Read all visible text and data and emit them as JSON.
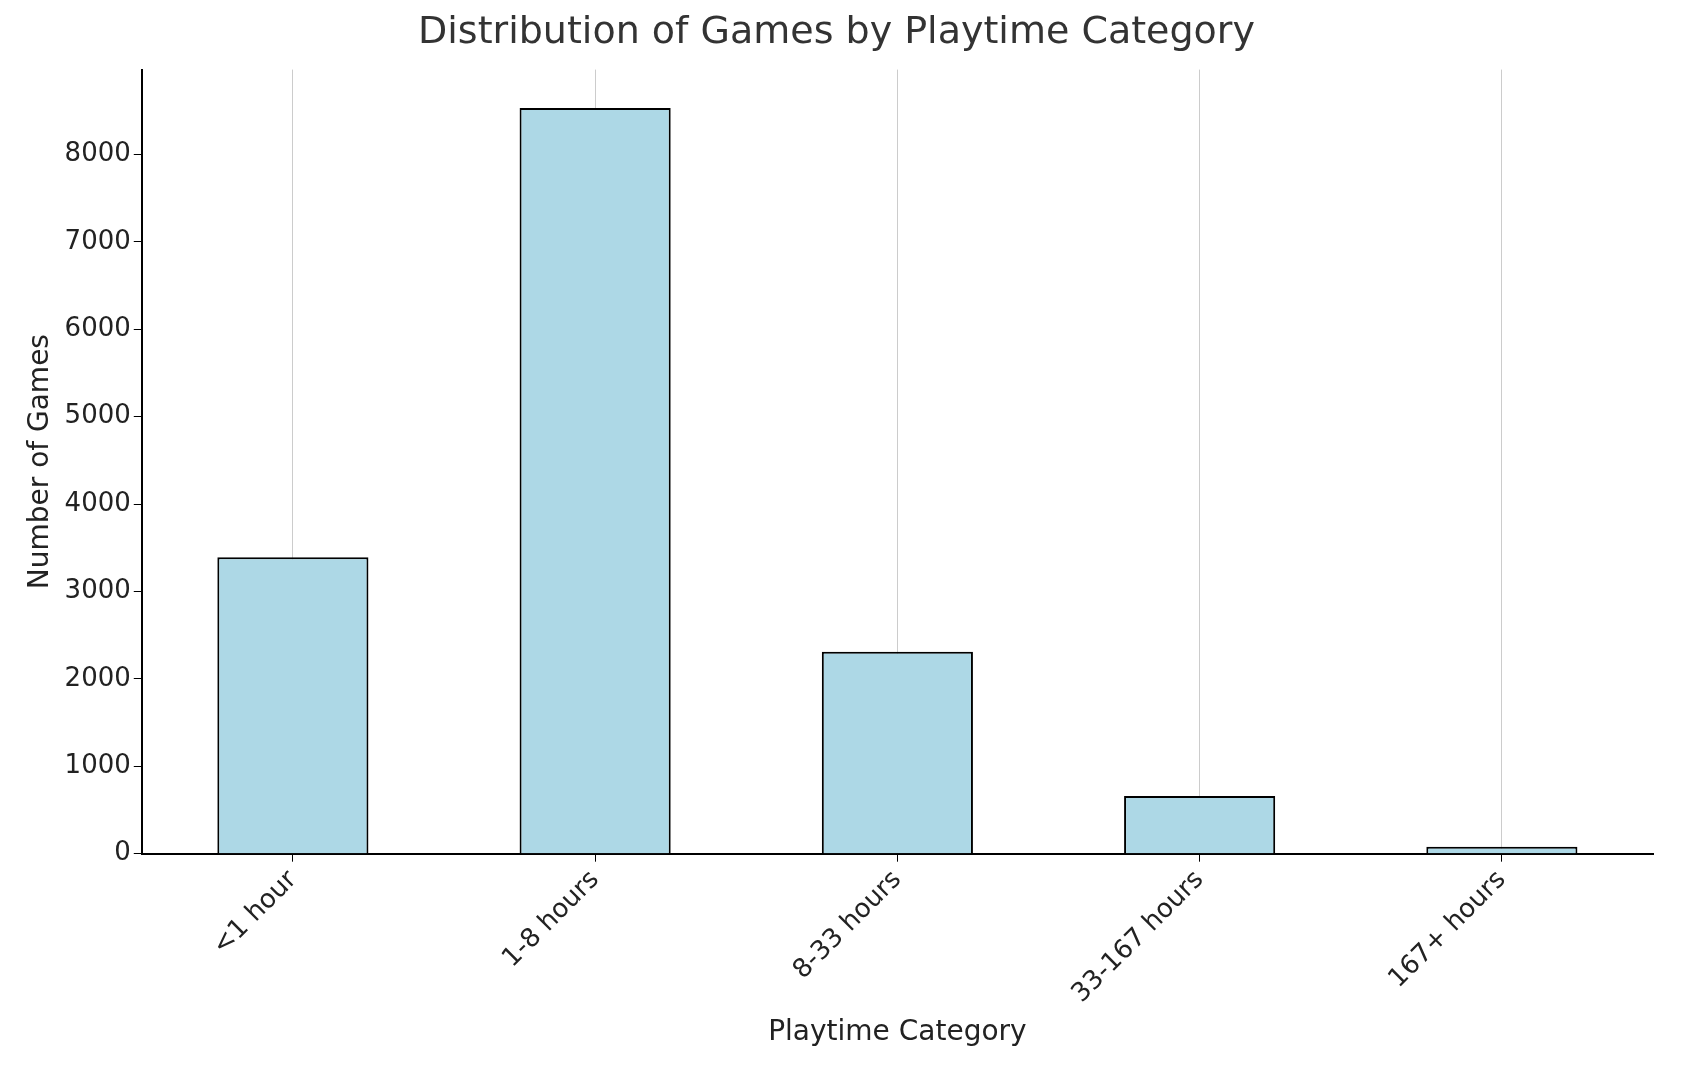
{
  "chart_data": {
    "type": "bar",
    "title": "Distribution of Games by Playtime Category",
    "xlabel": "Playtime Category",
    "ylabel": "Number of Games",
    "categories": [
      "<1 hour",
      "1-8 hours",
      "8-33 hours",
      "33-167 hours",
      "167+ hours"
    ],
    "values": [
      3390,
      8530,
      2310,
      660,
      80
    ],
    "color": "#add8e6",
    "ylim": [
      0,
      8970
    ],
    "yticks": [
      0,
      1000,
      2000,
      3000,
      4000,
      5000,
      6000,
      7000,
      8000
    ],
    "grid": "x"
  }
}
